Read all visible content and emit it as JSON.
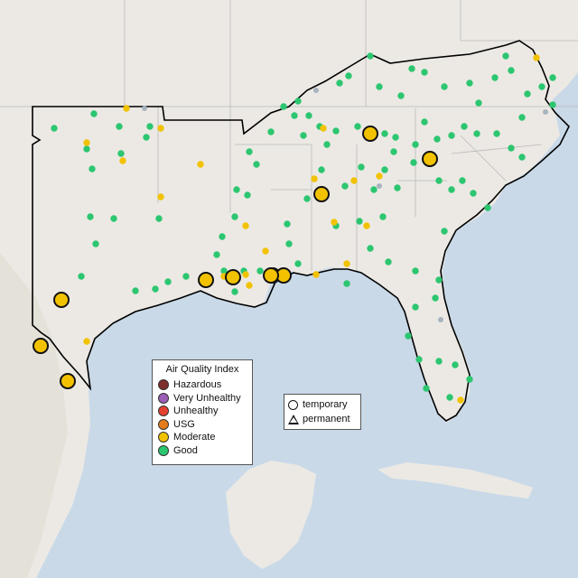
{
  "map": {
    "colors": {
      "water": "#c9d9e8",
      "land": "#ece9e4",
      "terrain_shade": "#dcd6cd",
      "borders": "#b9b9b9",
      "region_outline": "#000000"
    },
    "aqi_legend": {
      "title": "Air Quality Index",
      "items": [
        {
          "label": "Hazardous",
          "color": "#7e2d2d"
        },
        {
          "label": "Very Unhealthy",
          "color": "#9b5fb5"
        },
        {
          "label": "Unhealthy",
          "color": "#e5412f"
        },
        {
          "label": "USG",
          "color": "#e47c1c"
        },
        {
          "label": "Moderate",
          "color": "#f2c200"
        },
        {
          "label": "Good",
          "color": "#2dc670"
        }
      ]
    },
    "type_legend": {
      "items": [
        {
          "label": "temporary",
          "icon": "circle-outline-icon"
        },
        {
          "label": "permanent",
          "icon": "triangle-outline-icon"
        }
      ]
    },
    "markers": {
      "large_moderate_temporary": 11,
      "note": "monitor dots colored by AQI category"
    }
  }
}
